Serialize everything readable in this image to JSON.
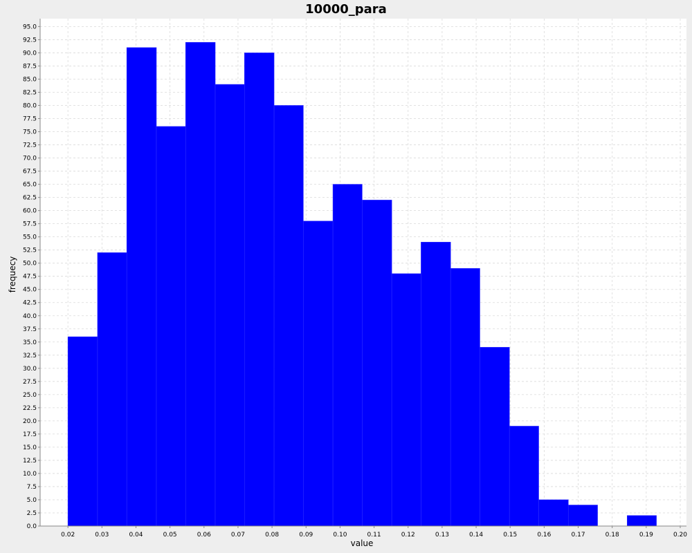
{
  "chart_data": {
    "type": "bar",
    "title": "10000_para",
    "xlabel": "value",
    "ylabel": "frequecy",
    "xlim": [
      0.01183,
      0.20183
    ],
    "ylim": [
      0,
      96.5
    ],
    "x_ticks": [
      "0.02",
      "0.03",
      "0.04",
      "0.05",
      "0.06",
      "0.07",
      "0.08",
      "0.09",
      "0.10",
      "0.11",
      "0.12",
      "0.13",
      "0.14",
      "0.15",
      "0.16",
      "0.17",
      "0.18",
      "0.19",
      "0.20"
    ],
    "y_ticks": [
      "0.0",
      "2.5",
      "5.0",
      "7.5",
      "10.0",
      "12.5",
      "15.0",
      "17.5",
      "20.0",
      "22.5",
      "25.0",
      "27.5",
      "30.0",
      "32.5",
      "35.0",
      "37.5",
      "40.0",
      "42.5",
      "45.0",
      "47.5",
      "50.0",
      "52.5",
      "55.0",
      "57.5",
      "60.0",
      "62.5",
      "65.0",
      "67.5",
      "70.0",
      "72.5",
      "75.0",
      "77.5",
      "80.0",
      "82.5",
      "85.0",
      "87.5",
      "90.0",
      "92.5",
      "95.0"
    ],
    "bins": [
      {
        "start": 0.02,
        "end": 0.0287,
        "value": 36
      },
      {
        "start": 0.0287,
        "end": 0.0373,
        "value": 52
      },
      {
        "start": 0.0373,
        "end": 0.046,
        "value": 91
      },
      {
        "start": 0.046,
        "end": 0.0546,
        "value": 76
      },
      {
        "start": 0.0546,
        "end": 0.0633,
        "value": 92
      },
      {
        "start": 0.0633,
        "end": 0.0719,
        "value": 84
      },
      {
        "start": 0.0719,
        "end": 0.0806,
        "value": 90
      },
      {
        "start": 0.0806,
        "end": 0.0892,
        "value": 80
      },
      {
        "start": 0.0892,
        "end": 0.0979,
        "value": 58
      },
      {
        "start": 0.0979,
        "end": 0.1065,
        "value": 65
      },
      {
        "start": 0.1065,
        "end": 0.1152,
        "value": 62
      },
      {
        "start": 0.1152,
        "end": 0.1238,
        "value": 48
      },
      {
        "start": 0.1238,
        "end": 0.1325,
        "value": 54
      },
      {
        "start": 0.1325,
        "end": 0.1411,
        "value": 49
      },
      {
        "start": 0.1411,
        "end": 0.1498,
        "value": 34
      },
      {
        "start": 0.1498,
        "end": 0.1584,
        "value": 19
      },
      {
        "start": 0.1584,
        "end": 0.1671,
        "value": 5
      },
      {
        "start": 0.1671,
        "end": 0.1757,
        "value": 4
      },
      {
        "start": 0.1757,
        "end": 0.1844,
        "value": 0
      },
      {
        "start": 0.1844,
        "end": 0.193,
        "value": 2
      }
    ],
    "grid": true,
    "colors": {
      "bar": "#0000ff",
      "plot_background": "#ffffff",
      "gridline": "#d9d9d9",
      "page_background": "#eeeeee"
    }
  }
}
